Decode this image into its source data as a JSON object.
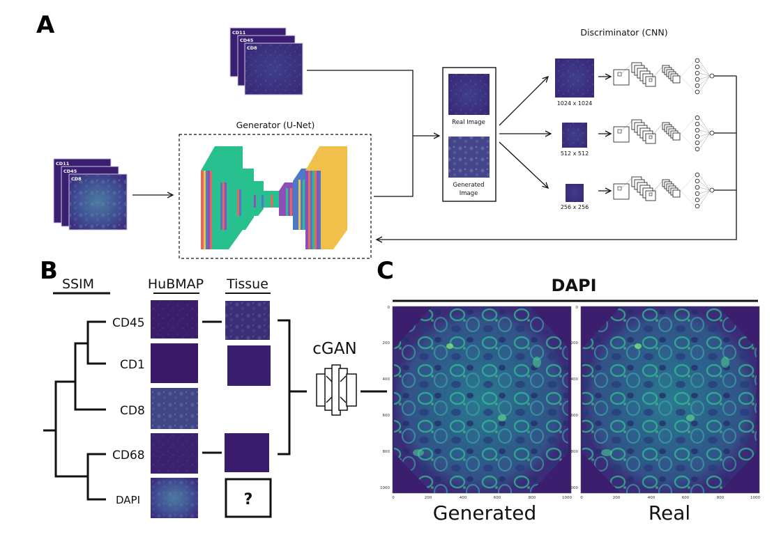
{
  "panel_a": {
    "letter": "A",
    "top_stack_channels": [
      "CD11",
      "CD45",
      "CD8"
    ],
    "left_stack_channels": [
      "CD11",
      "CD45",
      "CD8"
    ],
    "generator_title": "Generator (U-Net)",
    "discriminator_title": "Discriminator (CNN)",
    "real_image_label": "Real Image",
    "generated_image_label_line1": "Generated",
    "generated_image_label_line2": "Image",
    "scales": [
      "1024 x 1024",
      "512 x 512",
      "256 x 256"
    ]
  },
  "panel_b": {
    "letter": "B",
    "headers": {
      "ssim": "SSIM",
      "hubmap": "HuBMAP",
      "tissue": "Tissue"
    },
    "markers": [
      "CD45",
      "CD1",
      "CD8",
      "CD68",
      "DAPI"
    ],
    "unknown_symbol": "?",
    "cgan_label": "cGAN"
  },
  "panel_c": {
    "letter": "C",
    "title": "DAPI",
    "x_ticks": [
      "0",
      "200",
      "400",
      "600",
      "800",
      "1000"
    ],
    "y_ticks": [
      "0",
      "200",
      "400",
      "600",
      "800",
      "1000"
    ],
    "left_caption": "Generated",
    "right_caption": "Real"
  },
  "colors": {
    "image_dark": "#3b1e6e",
    "image_mid": "#3d4a8a",
    "image_bright": "#2cb38b",
    "unet_green": "#27c08e",
    "unet_yellow": "#f0c04a",
    "line": "#111111"
  }
}
